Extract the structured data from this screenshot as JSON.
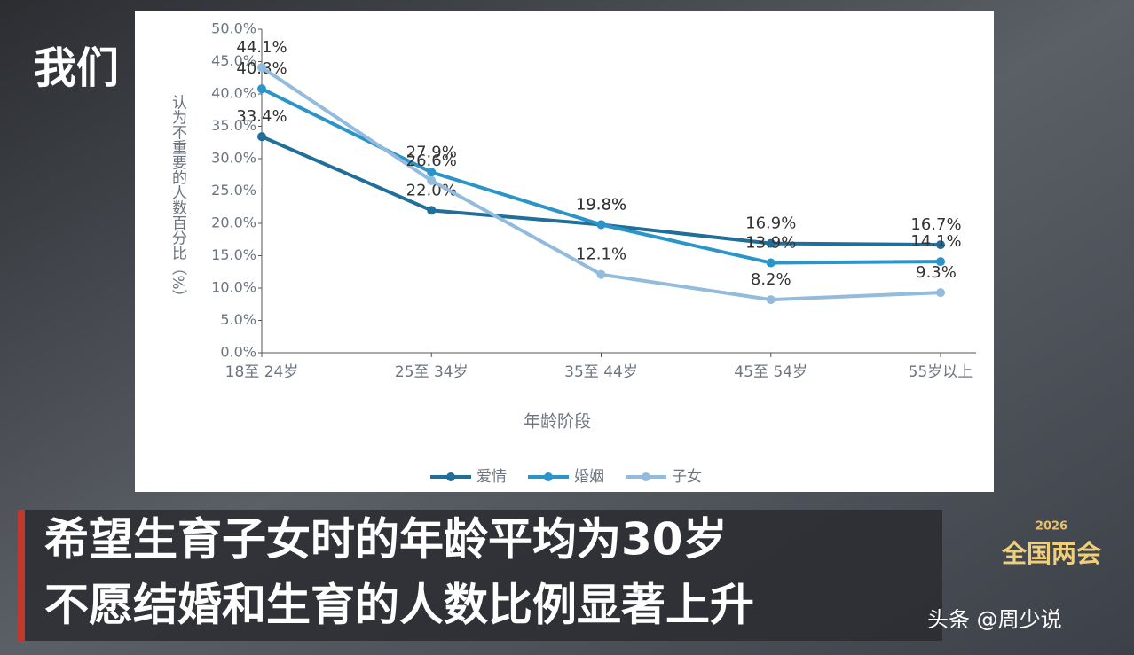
{
  "chart_data": {
    "type": "line",
    "y_label": "认为不重要的人数百分比（%）",
    "x_label": "年龄阶段",
    "categories": [
      "18至 24岁",
      "25至 34岁",
      "35至 44岁",
      "45至 54岁",
      "55岁以上"
    ],
    "series": [
      {
        "name": "爱情",
        "color": "#1f6f9a",
        "values": [
          33.4,
          22.0,
          19.8,
          16.9,
          16.7
        ],
        "value_labels": [
          "33.4%",
          "22.0%",
          "19.8%",
          "16.9%",
          "16.7%"
        ]
      },
      {
        "name": "婚姻",
        "color": "#2b95c9",
        "values": [
          40.8,
          27.9,
          19.8,
          13.9,
          14.1
        ],
        "value_labels": [
          "40.8%",
          "27.9%",
          "19.8%",
          "13.9%",
          "14.1%"
        ]
      },
      {
        "name": "子女",
        "color": "#93bbdd",
        "values": [
          44.1,
          26.6,
          12.1,
          8.2,
          9.3
        ],
        "value_labels": [
          "44.1%",
          "26.6%",
          "12.1%",
          "8.2%",
          "9.3%"
        ]
      }
    ],
    "ylim": [
      0,
      50
    ],
    "yticks": [
      {
        "value": 0,
        "label": "0.0%"
      },
      {
        "value": 5,
        "label": "5.0%"
      },
      {
        "value": 10,
        "label": "10.0%"
      },
      {
        "value": 15,
        "label": "15.0%"
      },
      {
        "value": 20,
        "label": "20.0%"
      },
      {
        "value": 25,
        "label": "25.0%"
      },
      {
        "value": 30,
        "label": "30.0%"
      },
      {
        "value": 35,
        "label": "35.0%"
      },
      {
        "value": 40,
        "label": "40.0%"
      },
      {
        "value": 45,
        "label": "45.0%"
      },
      {
        "value": 50,
        "label": "50.0%"
      }
    ],
    "legend": "bottom"
  },
  "logo": "我们",
  "subtitles": [
    "希望生育子女时的年龄平均为30岁",
    "不愿结婚和生育的人数比例显著上升"
  ],
  "badge": {
    "year": "2026",
    "title": "全国两会"
  },
  "watermark": "头条 @周少说"
}
